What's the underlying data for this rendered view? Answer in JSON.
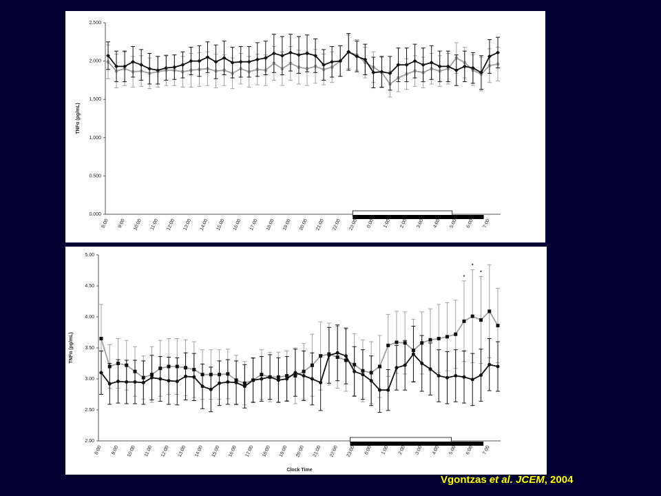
{
  "chart_data": [
    {
      "type": "line",
      "y_label": "TNFα (pg/mL)",
      "categories": [
        "8:00",
        null,
        "9:00",
        null,
        "10:00",
        null,
        "11:00",
        null,
        "12:00",
        null,
        "13:00",
        null,
        "14:00",
        null,
        "15:00",
        null,
        "16:00",
        null,
        "17:00",
        null,
        "18:00",
        null,
        "19:00",
        null,
        "20:00",
        null,
        "21:00",
        null,
        "22:00",
        null,
        "23:00",
        null,
        "0:00",
        null,
        "1:00",
        null,
        "2:00",
        null,
        "3:00",
        null,
        "4:00",
        null,
        "5:00",
        null,
        "6:00",
        null,
        "7:00",
        null
      ],
      "ylim": [
        0,
        2.5
      ],
      "yticks": [
        {
          "value": 0,
          "label": "0.000"
        },
        {
          "value": 0.5,
          "label": "0.500"
        },
        {
          "value": 1,
          "label": "1.000"
        },
        {
          "value": 1.5,
          "label": "1.500"
        },
        {
          "value": 2,
          "label": "2.000"
        },
        {
          "value": 2.5,
          "label": "2.500"
        }
      ],
      "series": [
        {
          "color": "#a0a0a0",
          "marker": "circle",
          "values": [
            1.99,
            1.87,
            1.9,
            1.86,
            1.87,
            1.84,
            1.86,
            1.88,
            1.88,
            1.86,
            1.88,
            1.89,
            1.9,
            1.87,
            1.88,
            1.84,
            1.9,
            1.86,
            1.89,
            1.88,
            1.97,
            1.9,
            1.97,
            1.92,
            1.9,
            1.93,
            1.89,
            1.92,
            2.0,
            2.12,
            2.08,
            1.98,
            1.92,
            1.85,
            1.7,
            1.78,
            1.83,
            1.87,
            1.85,
            1.9,
            1.87,
            1.9,
            2.04,
            1.98,
            1.88,
            1.83,
            1.94,
            1.96
          ],
          "errors": [
            0.22,
            0.22,
            0.22,
            0.2,
            0.2,
            0.2,
            0.2,
            0.2,
            0.2,
            0.2,
            0.22,
            0.22,
            0.22,
            0.22,
            0.2,
            0.2,
            0.2,
            0.2,
            0.2,
            0.2,
            0.22,
            0.22,
            0.22,
            0.22,
            0.22,
            0.22,
            0.2,
            0.2,
            0.2,
            0.22,
            0.2,
            0.2,
            0.2,
            0.2,
            0.17,
            0.18,
            0.2,
            0.2,
            0.2,
            0.2,
            0.2,
            0.2,
            0.2,
            0.2,
            0.2,
            0.22,
            0.22,
            0.22
          ]
        },
        {
          "color": "#111111",
          "marker": "diamond",
          "values": [
            2.07,
            1.93,
            1.93,
            1.99,
            1.95,
            1.9,
            1.88,
            1.91,
            1.92,
            1.95,
            2.0,
            2.0,
            2.05,
            1.99,
            2.04,
            1.98,
            1.99,
            1.99,
            2.02,
            2.04,
            2.1,
            2.07,
            2.11,
            2.08,
            2.1,
            2.07,
            1.95,
            1.99,
            2.0,
            2.12,
            2.06,
            2.02,
            1.85,
            1.86,
            1.84,
            1.95,
            1.95,
            2.0,
            1.95,
            1.98,
            1.93,
            1.93,
            1.88,
            1.93,
            1.91,
            1.85,
            2.06,
            2.11
          ],
          "errors": [
            0.18,
            0.2,
            0.2,
            0.2,
            0.2,
            0.2,
            0.18,
            0.16,
            0.16,
            0.17,
            0.18,
            0.2,
            0.2,
            0.22,
            0.22,
            0.2,
            0.2,
            0.2,
            0.22,
            0.22,
            0.25,
            0.25,
            0.24,
            0.24,
            0.24,
            0.22,
            0.2,
            0.2,
            0.2,
            0.24,
            0.2,
            0.2,
            0.2,
            0.2,
            0.22,
            0.22,
            0.22,
            0.22,
            0.22,
            0.22,
            0.2,
            0.2,
            0.2,
            0.2,
            0.2,
            0.22,
            0.22,
            0.2
          ]
        }
      ]
    },
    {
      "type": "line",
      "y_label": "TNFα (pg/mL)",
      "x_label": "Clock Time",
      "categories": [
        "8:00",
        null,
        "9:00",
        null,
        "10:00",
        null,
        "11:00",
        null,
        "12:00",
        null,
        "13:00",
        null,
        "14:00",
        null,
        "15:00",
        null,
        "16:00",
        null,
        "17:00",
        null,
        "18:00",
        null,
        "19:00",
        null,
        "20:00",
        null,
        "21:00",
        null,
        "22:00",
        null,
        "23:00",
        null,
        "0:00",
        null,
        "1:00",
        null,
        "2:00",
        null,
        "3:00",
        null,
        "4:00",
        null,
        "5:00",
        null,
        "6:00",
        null,
        "7:00",
        null
      ],
      "ylim": [
        2,
        5
      ],
      "yticks": [
        {
          "value": 2,
          "label": "2.00"
        },
        {
          "value": 2.5,
          "label": "2.50"
        },
        {
          "value": 3,
          "label": "3.00"
        },
        {
          "value": 3.5,
          "label": "3.50"
        },
        {
          "value": 4,
          "label": "4.00"
        },
        {
          "value": 4.5,
          "label": "4.50"
        },
        {
          "value": 5,
          "label": "5.00"
        }
      ],
      "annotations": [
        "*",
        "*",
        "*"
      ],
      "series": [
        {
          "color": "#a0a0a0",
          "marker": "square",
          "values": [
            3.65,
            3.2,
            3.25,
            3.22,
            3.12,
            3.02,
            3.07,
            3.17,
            3.2,
            3.2,
            3.18,
            3.15,
            3.07,
            3.07,
            3.07,
            3.08,
            2.98,
            2.93,
            2.98,
            3.07,
            3.03,
            3.03,
            3.05,
            3.05,
            3.12,
            3.22,
            3.37,
            3.4,
            3.35,
            3.3,
            3.23,
            3.13,
            3.1,
            3.2,
            3.54,
            3.59,
            3.58,
            3.46,
            3.58,
            3.63,
            3.65,
            3.68,
            3.72,
            3.93,
            4.01,
            3.95,
            4.09,
            3.86
          ],
          "errors": [
            0.55,
            0.35,
            0.4,
            0.4,
            0.4,
            0.35,
            0.45,
            0.45,
            0.45,
            0.45,
            0.45,
            0.45,
            0.4,
            0.4,
            0.4,
            0.4,
            0.4,
            0.35,
            0.35,
            0.4,
            0.4,
            0.4,
            0.4,
            0.45,
            0.45,
            0.5,
            0.55,
            0.5,
            0.5,
            0.5,
            0.5,
            0.5,
            0.5,
            0.5,
            0.5,
            0.5,
            0.5,
            0.5,
            0.5,
            0.5,
            0.55,
            0.55,
            0.55,
            0.65,
            0.75,
            0.7,
            0.75,
            0.6
          ]
        },
        {
          "color": "#111111",
          "marker": "circle",
          "values": [
            3.1,
            2.92,
            2.96,
            2.95,
            2.95,
            2.94,
            3.02,
            3.0,
            2.97,
            2.96,
            3.04,
            3.03,
            2.88,
            2.83,
            2.93,
            2.95,
            2.94,
            2.88,
            2.98,
            3.0,
            3.03,
            2.98,
            3.0,
            3.1,
            3.05,
            3.0,
            2.94,
            3.38,
            3.42,
            3.37,
            3.12,
            3.07,
            2.97,
            2.82,
            2.82,
            3.18,
            3.22,
            3.4,
            3.25,
            3.16,
            3.05,
            3.02,
            3.05,
            3.03,
            2.99,
            3.06,
            3.23,
            3.2
          ],
          "errors": [
            0.35,
            0.33,
            0.35,
            0.35,
            0.35,
            0.35,
            0.36,
            0.36,
            0.38,
            0.38,
            0.38,
            0.38,
            0.36,
            0.36,
            0.36,
            0.36,
            0.35,
            0.35,
            0.36,
            0.36,
            0.36,
            0.36,
            0.36,
            0.38,
            0.4,
            0.42,
            0.45,
            0.45,
            0.45,
            0.45,
            0.4,
            0.4,
            0.4,
            0.36,
            0.33,
            0.36,
            0.4,
            0.45,
            0.45,
            0.42,
            0.42,
            0.42,
            0.42,
            0.42,
            0.42,
            0.42,
            0.42,
            0.4
          ]
        }
      ]
    }
  ],
  "citation": {
    "author": "Vgontzas",
    "journal": "et al. JCEM",
    "year": ", 2004"
  }
}
